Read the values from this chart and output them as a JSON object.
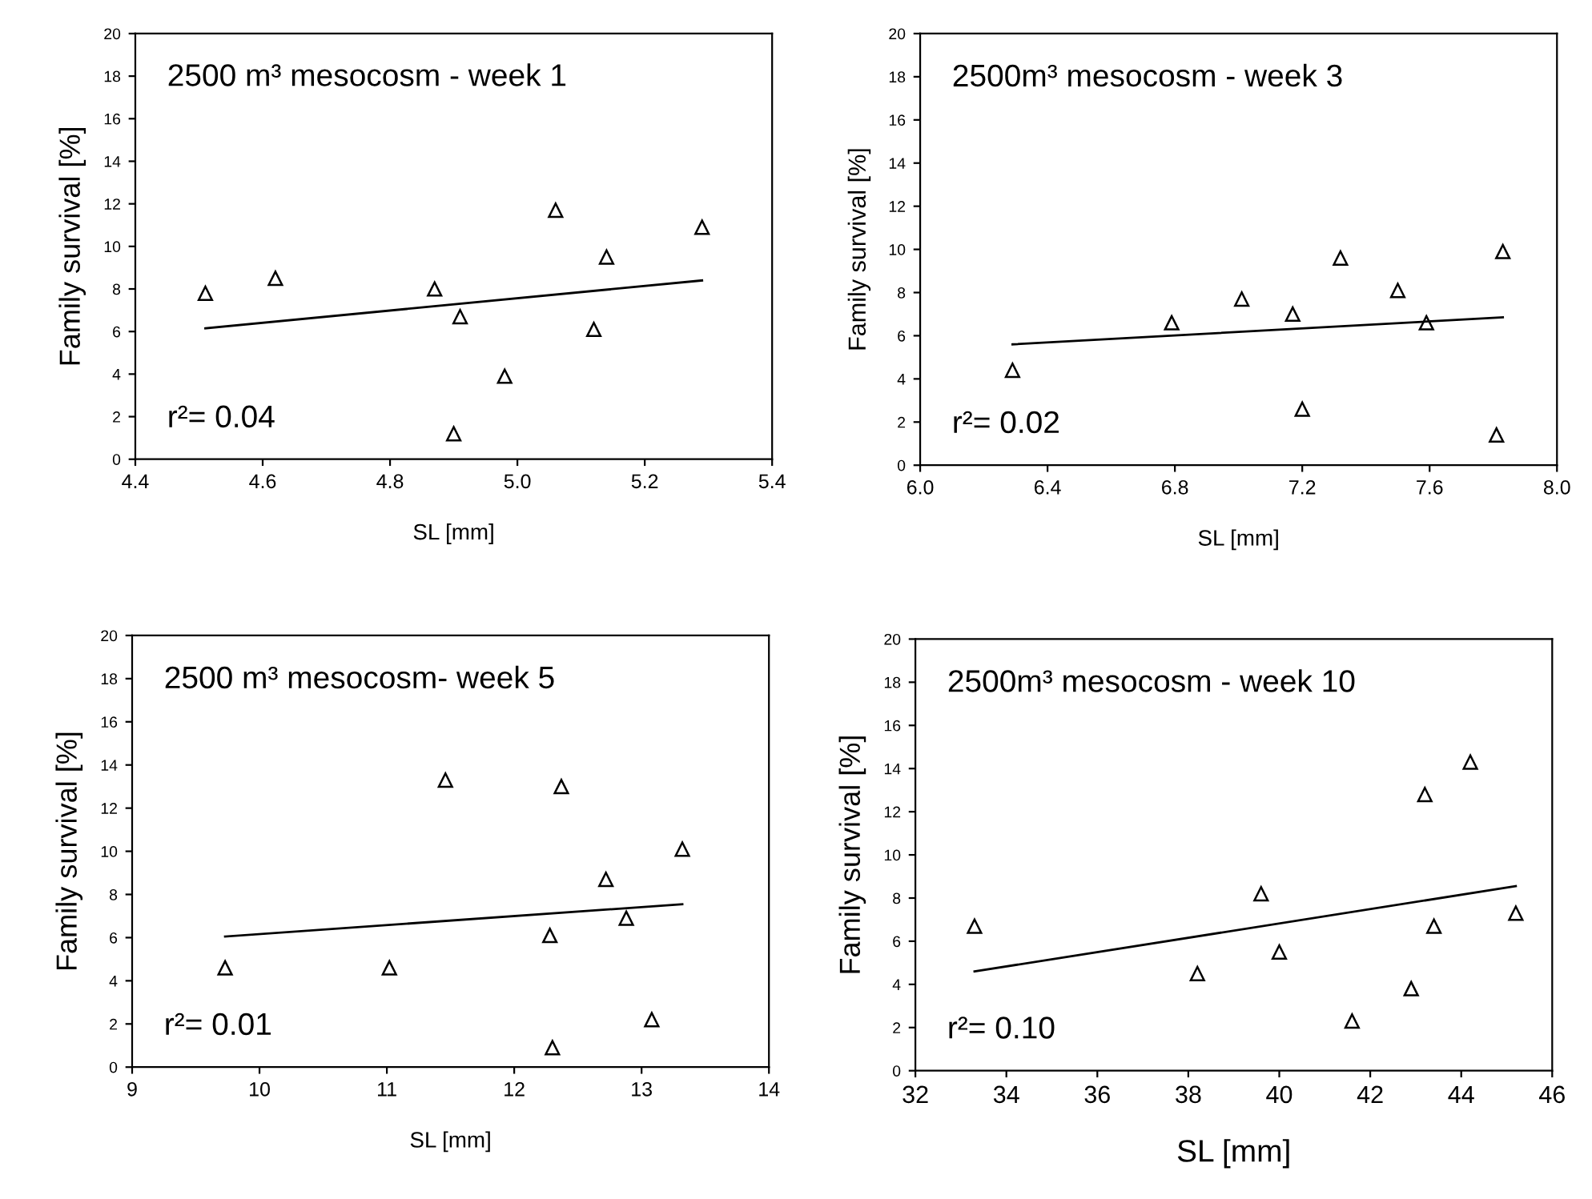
{
  "chart_data": [
    {
      "type": "scatter",
      "title": "2500 m³ mesocosm - week 1",
      "xlabel": "SL [mm]",
      "ylabel": "Family survival [%]",
      "annotations": [
        "r²= 0.04"
      ],
      "xlim": [
        4.4,
        5.4
      ],
      "xticks": [
        {
          "value": 4.4,
          "label": "4.4"
        },
        {
          "value": 4.6,
          "label": "4.6"
        },
        {
          "value": 4.8,
          "label": "4.8"
        },
        {
          "value": 5.0,
          "label": "5.0"
        },
        {
          "value": 5.2,
          "label": "5.2"
        },
        {
          "value": 5.4,
          "label": "5.4"
        }
      ],
      "ylim": [
        0,
        20
      ],
      "yticks": [
        0,
        2,
        4,
        6,
        8,
        10,
        12,
        14,
        16,
        18,
        20
      ],
      "grid": false,
      "series": [
        {
          "color": "#000000",
          "marker": "triangle",
          "x": [
            4.51,
            4.62,
            4.87,
            4.91,
            4.9,
            4.98,
            5.06,
            5.12,
            5.14,
            5.29
          ],
          "values": [
            7.8,
            8.5,
            8.0,
            6.7,
            1.2,
            3.9,
            11.7,
            6.1,
            9.5,
            10.9
          ]
        },
        {
          "type": "line",
          "color": "#000000",
          "marker": "none",
          "x": [
            4.51,
            5.29
          ],
          "values": [
            6.15,
            8.4
          ]
        }
      ]
    },
    {
      "type": "scatter",
      "title": "2500m³ mesocosm - week 3",
      "xlabel": "SL [mm]",
      "ylabel": "Family survival [%]",
      "annotations": [
        "r²= 0.02"
      ],
      "xlim": [
        6.0,
        8.0
      ],
      "xticks": [
        {
          "value": 6.0,
          "label": "6.0"
        },
        {
          "value": 6.4,
          "label": "6.4"
        },
        {
          "value": 6.8,
          "label": "6.8"
        },
        {
          "value": 7.2,
          "label": "7.2"
        },
        {
          "value": 7.6,
          "label": "7.6"
        },
        {
          "value": 8.0,
          "label": "8.0"
        }
      ],
      "ylim": [
        0,
        20
      ],
      "yticks": [
        0,
        2,
        4,
        6,
        8,
        10,
        12,
        14,
        16,
        18,
        20
      ],
      "grid": false,
      "series": [
        {
          "color": "#000000",
          "marker": "triangle",
          "x": [
            6.29,
            6.79,
            7.01,
            7.17,
            7.2,
            7.32,
            7.5,
            7.59,
            7.81,
            7.83
          ],
          "values": [
            4.4,
            6.6,
            7.7,
            7.0,
            2.6,
            9.6,
            8.1,
            6.6,
            1.4,
            9.9
          ]
        },
        {
          "type": "line",
          "color": "#000000",
          "marker": "none",
          "x": [
            6.29,
            7.83
          ],
          "values": [
            5.6,
            6.85
          ]
        }
      ]
    },
    {
      "type": "scatter",
      "title": "2500 m³ mesocosm- week 5",
      "xlabel": "SL [mm]",
      "ylabel": "Family survival [%]",
      "annotations": [
        "r²= 0.01"
      ],
      "xlim": [
        9,
        14
      ],
      "xticks": [
        9,
        10,
        11,
        12,
        13,
        14
      ],
      "ylim": [
        0,
        20
      ],
      "yticks": [
        0,
        2,
        4,
        6,
        8,
        10,
        12,
        14,
        16,
        18,
        20
      ],
      "grid": false,
      "series": [
        {
          "color": "#000000",
          "marker": "triangle",
          "x": [
            9.73,
            11.02,
            11.46,
            12.28,
            12.3,
            12.37,
            12.72,
            12.88,
            13.08,
            13.32
          ],
          "values": [
            4.6,
            4.6,
            13.3,
            6.1,
            0.9,
            13.0,
            8.7,
            6.9,
            2.2,
            10.1
          ]
        },
        {
          "type": "line",
          "color": "#000000",
          "marker": "none",
          "x": [
            9.73,
            13.32
          ],
          "values": [
            6.05,
            7.55
          ]
        }
      ]
    },
    {
      "type": "scatter",
      "title": "2500m³ mesocosm - week 10",
      "xlabel": "SL [mm]",
      "ylabel": "Family survival [%]",
      "annotations": [
        "r²= 0.10"
      ],
      "xlim": [
        32,
        46
      ],
      "xticks": [
        32,
        34,
        36,
        38,
        40,
        42,
        44,
        46
      ],
      "ylim": [
        0,
        20
      ],
      "yticks": [
        0,
        2,
        4,
        6,
        8,
        10,
        12,
        14,
        16,
        18,
        20
      ],
      "grid": false,
      "series": [
        {
          "color": "#000000",
          "marker": "triangle",
          "x": [
            33.3,
            38.2,
            39.6,
            40.0,
            41.6,
            42.9,
            43.2,
            43.4,
            44.2,
            45.2
          ],
          "values": [
            6.7,
            4.5,
            8.2,
            5.5,
            2.3,
            3.8,
            12.8,
            6.7,
            14.3,
            7.3
          ]
        },
        {
          "type": "line",
          "color": "#000000",
          "marker": "none",
          "x": [
            33.3,
            45.2
          ],
          "values": [
            4.6,
            8.55
          ]
        }
      ]
    }
  ]
}
